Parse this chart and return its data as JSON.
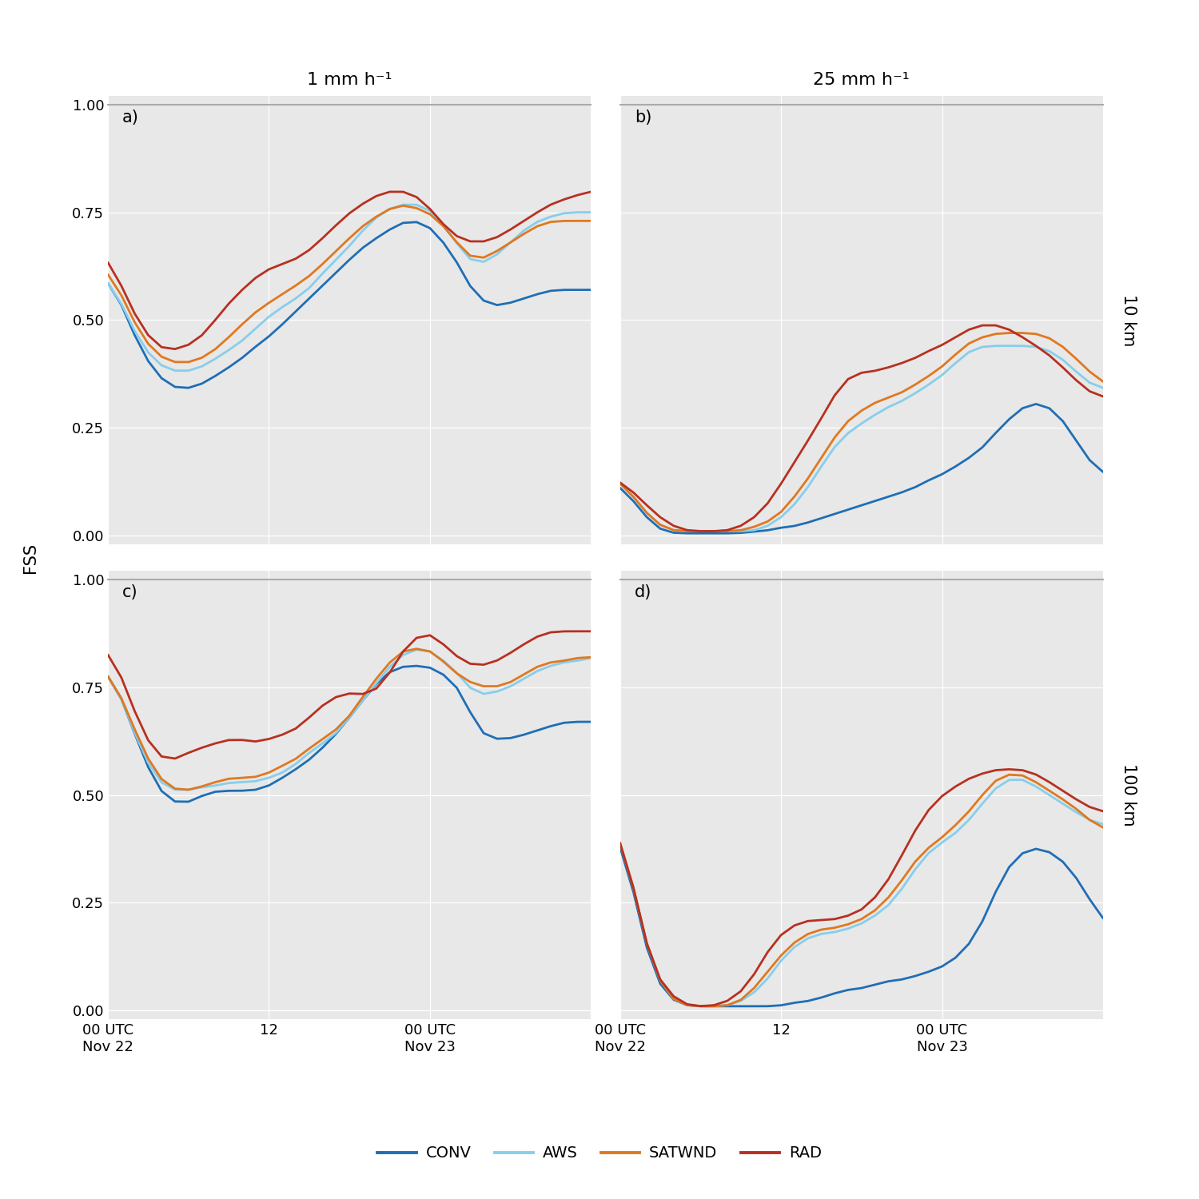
{
  "colors": {
    "CONV": "#1f6eb5",
    "AWS": "#87ceeb",
    "SATWND": "#e07820",
    "RAD": "#b83020"
  },
  "line_width": 2.0,
  "background_color": "#e8e8e8",
  "grid_color": "white",
  "col_titles": [
    "1 mm h⁻¹",
    "25 mm h⁻¹"
  ],
  "row_labels": [
    "10 km",
    "100 km"
  ],
  "panel_labels": [
    "a)",
    "b)",
    "c)",
    "d)"
  ],
  "ylabel": "FSS",
  "yticks": [
    0.0,
    0.25,
    0.5,
    0.75,
    1.0
  ],
  "ytick_labels": [
    "0.00",
    "0.25",
    "0.50",
    "0.75",
    "1.00"
  ],
  "xtick_positions": [
    0,
    12,
    24,
    36
  ],
  "panel_a": {
    "CONV": [
      0.6,
      0.54,
      0.46,
      0.4,
      0.36,
      0.34,
      0.34,
      0.35,
      0.37,
      0.39,
      0.41,
      0.44,
      0.46,
      0.49,
      0.52,
      0.55,
      0.58,
      0.61,
      0.64,
      0.67,
      0.69,
      0.71,
      0.73,
      0.73,
      0.72,
      0.68,
      0.64,
      0.57,
      0.54,
      0.53,
      0.54,
      0.55,
      0.56,
      0.57,
      0.57,
      0.57,
      0.57
    ],
    "AWS": [
      0.6,
      0.54,
      0.47,
      0.42,
      0.39,
      0.38,
      0.38,
      0.39,
      0.41,
      0.43,
      0.45,
      0.48,
      0.51,
      0.53,
      0.55,
      0.57,
      0.61,
      0.64,
      0.67,
      0.71,
      0.74,
      0.76,
      0.77,
      0.77,
      0.76,
      0.72,
      0.68,
      0.63,
      0.63,
      0.65,
      0.68,
      0.71,
      0.73,
      0.74,
      0.75,
      0.75,
      0.75
    ],
    "SATWND": [
      0.62,
      0.56,
      0.49,
      0.44,
      0.41,
      0.4,
      0.4,
      0.41,
      0.43,
      0.46,
      0.49,
      0.52,
      0.54,
      0.56,
      0.58,
      0.6,
      0.63,
      0.66,
      0.69,
      0.72,
      0.74,
      0.76,
      0.77,
      0.76,
      0.75,
      0.72,
      0.68,
      0.64,
      0.64,
      0.66,
      0.68,
      0.7,
      0.72,
      0.73,
      0.73,
      0.73,
      0.73
    ],
    "RAD": [
      0.65,
      0.58,
      0.51,
      0.46,
      0.43,
      0.43,
      0.44,
      0.46,
      0.5,
      0.54,
      0.57,
      0.6,
      0.62,
      0.63,
      0.64,
      0.66,
      0.69,
      0.72,
      0.75,
      0.77,
      0.79,
      0.8,
      0.8,
      0.79,
      0.76,
      0.72,
      0.69,
      0.68,
      0.68,
      0.69,
      0.71,
      0.73,
      0.75,
      0.77,
      0.78,
      0.79,
      0.8
    ]
  },
  "panel_b": {
    "CONV": [
      0.12,
      0.08,
      0.04,
      0.01,
      0.005,
      0.005,
      0.005,
      0.005,
      0.005,
      0.005,
      0.01,
      0.01,
      0.02,
      0.02,
      0.03,
      0.04,
      0.05,
      0.06,
      0.07,
      0.08,
      0.09,
      0.1,
      0.11,
      0.13,
      0.14,
      0.16,
      0.18,
      0.2,
      0.24,
      0.27,
      0.3,
      0.31,
      0.3,
      0.27,
      0.22,
      0.17,
      0.14
    ],
    "AWS": [
      0.13,
      0.09,
      0.05,
      0.02,
      0.01,
      0.01,
      0.01,
      0.01,
      0.01,
      0.01,
      0.01,
      0.02,
      0.04,
      0.07,
      0.11,
      0.16,
      0.21,
      0.24,
      0.26,
      0.28,
      0.3,
      0.31,
      0.33,
      0.35,
      0.37,
      0.4,
      0.43,
      0.44,
      0.44,
      0.44,
      0.44,
      0.44,
      0.43,
      0.41,
      0.38,
      0.35,
      0.34
    ],
    "SATWND": [
      0.13,
      0.09,
      0.05,
      0.02,
      0.01,
      0.01,
      0.01,
      0.01,
      0.01,
      0.01,
      0.02,
      0.03,
      0.05,
      0.09,
      0.13,
      0.18,
      0.23,
      0.27,
      0.29,
      0.31,
      0.32,
      0.33,
      0.35,
      0.37,
      0.39,
      0.42,
      0.45,
      0.46,
      0.47,
      0.47,
      0.47,
      0.47,
      0.46,
      0.44,
      0.41,
      0.38,
      0.35
    ],
    "RAD": [
      0.13,
      0.1,
      0.07,
      0.04,
      0.02,
      0.01,
      0.01,
      0.01,
      0.01,
      0.02,
      0.04,
      0.07,
      0.12,
      0.17,
      0.22,
      0.27,
      0.33,
      0.37,
      0.38,
      0.38,
      0.39,
      0.4,
      0.41,
      0.43,
      0.44,
      0.46,
      0.48,
      0.49,
      0.49,
      0.48,
      0.46,
      0.44,
      0.42,
      0.39,
      0.36,
      0.33,
      0.32
    ]
  },
  "panel_c": {
    "CONV": [
      0.79,
      0.73,
      0.64,
      0.56,
      0.5,
      0.48,
      0.48,
      0.5,
      0.51,
      0.51,
      0.51,
      0.51,
      0.52,
      0.54,
      0.56,
      0.58,
      0.61,
      0.64,
      0.68,
      0.72,
      0.76,
      0.79,
      0.8,
      0.8,
      0.8,
      0.78,
      0.76,
      0.69,
      0.63,
      0.63,
      0.63,
      0.64,
      0.65,
      0.66,
      0.67,
      0.67,
      0.67
    ],
    "AWS": [
      0.79,
      0.73,
      0.64,
      0.57,
      0.52,
      0.51,
      0.51,
      0.52,
      0.52,
      0.53,
      0.53,
      0.53,
      0.54,
      0.55,
      0.57,
      0.6,
      0.62,
      0.64,
      0.68,
      0.72,
      0.76,
      0.8,
      0.83,
      0.84,
      0.84,
      0.81,
      0.79,
      0.74,
      0.73,
      0.74,
      0.75,
      0.77,
      0.79,
      0.8,
      0.81,
      0.81,
      0.82
    ],
    "SATWND": [
      0.79,
      0.73,
      0.65,
      0.58,
      0.53,
      0.51,
      0.51,
      0.52,
      0.53,
      0.54,
      0.54,
      0.54,
      0.55,
      0.57,
      0.58,
      0.61,
      0.63,
      0.65,
      0.68,
      0.73,
      0.77,
      0.81,
      0.84,
      0.84,
      0.84,
      0.81,
      0.78,
      0.76,
      0.75,
      0.75,
      0.76,
      0.78,
      0.8,
      0.81,
      0.81,
      0.82,
      0.82
    ],
    "RAD": [
      0.84,
      0.78,
      0.69,
      0.62,
      0.58,
      0.58,
      0.6,
      0.61,
      0.62,
      0.63,
      0.63,
      0.62,
      0.63,
      0.64,
      0.65,
      0.68,
      0.71,
      0.73,
      0.74,
      0.73,
      0.74,
      0.78,
      0.84,
      0.87,
      0.88,
      0.85,
      0.82,
      0.8,
      0.8,
      0.81,
      0.83,
      0.85,
      0.87,
      0.88,
      0.88,
      0.88,
      0.88
    ]
  },
  "panel_d": {
    "CONV": [
      0.41,
      0.28,
      0.13,
      0.05,
      0.02,
      0.01,
      0.01,
      0.01,
      0.01,
      0.01,
      0.01,
      0.01,
      0.01,
      0.02,
      0.02,
      0.03,
      0.04,
      0.05,
      0.05,
      0.06,
      0.07,
      0.07,
      0.08,
      0.09,
      0.1,
      0.12,
      0.15,
      0.2,
      0.28,
      0.34,
      0.37,
      0.38,
      0.37,
      0.35,
      0.31,
      0.26,
      0.2
    ],
    "AWS": [
      0.42,
      0.29,
      0.14,
      0.06,
      0.02,
      0.01,
      0.01,
      0.01,
      0.01,
      0.02,
      0.04,
      0.07,
      0.12,
      0.15,
      0.17,
      0.18,
      0.18,
      0.19,
      0.2,
      0.22,
      0.24,
      0.28,
      0.33,
      0.37,
      0.39,
      0.41,
      0.44,
      0.48,
      0.52,
      0.54,
      0.54,
      0.52,
      0.5,
      0.48,
      0.46,
      0.44,
      0.43
    ],
    "SATWND": [
      0.42,
      0.29,
      0.14,
      0.06,
      0.02,
      0.01,
      0.01,
      0.01,
      0.01,
      0.02,
      0.05,
      0.09,
      0.13,
      0.16,
      0.18,
      0.19,
      0.19,
      0.2,
      0.21,
      0.23,
      0.26,
      0.3,
      0.35,
      0.38,
      0.4,
      0.43,
      0.46,
      0.5,
      0.54,
      0.55,
      0.55,
      0.53,
      0.51,
      0.49,
      0.47,
      0.44,
      0.42
    ],
    "RAD": [
      0.42,
      0.29,
      0.14,
      0.06,
      0.03,
      0.01,
      0.01,
      0.01,
      0.02,
      0.04,
      0.08,
      0.14,
      0.18,
      0.2,
      0.21,
      0.21,
      0.21,
      0.22,
      0.23,
      0.26,
      0.3,
      0.36,
      0.42,
      0.47,
      0.5,
      0.52,
      0.54,
      0.55,
      0.56,
      0.56,
      0.56,
      0.55,
      0.53,
      0.51,
      0.49,
      0.47,
      0.46
    ]
  }
}
